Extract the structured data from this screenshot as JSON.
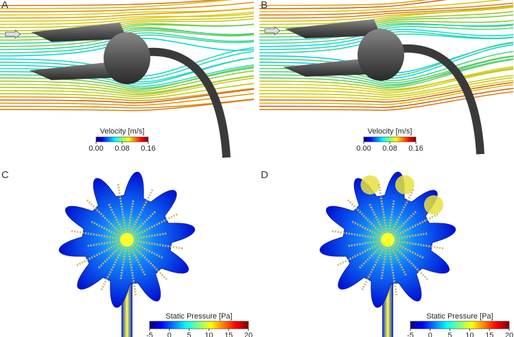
{
  "panels": [
    {
      "label": "A",
      "colorbar": {
        "title": "Velocity [m/s]",
        "ticks": [
          "0.00",
          "0.08",
          "0.16"
        ]
      }
    },
    {
      "label": "B",
      "colorbar": {
        "title": "Velocity [m/s]",
        "ticks": [
          "0.00",
          "0.08",
          "0.16"
        ]
      }
    },
    {
      "label": "C",
      "colorbar": {
        "title": "Static Pressure [Pa]",
        "ticks": [
          "-5",
          "0",
          "5",
          "10",
          "15",
          "20"
        ]
      }
    },
    {
      "label": "D",
      "colorbar": {
        "title": "Static Pressure [Pa]",
        "ticks": [
          "-5",
          "0",
          "5",
          "10",
          "15",
          "20"
        ]
      }
    }
  ]
}
